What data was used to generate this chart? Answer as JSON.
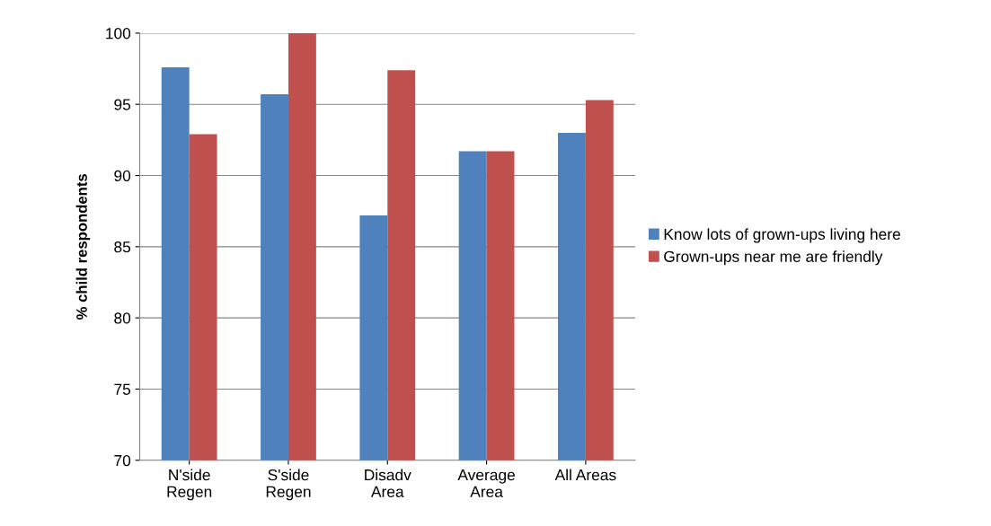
{
  "chart_data": {
    "type": "bar",
    "ylabel": "% child respondents",
    "categories": [
      "N'side\nRegen",
      "S'side\nRegen",
      "Disadv\nArea",
      "Average\nArea",
      "All Areas"
    ],
    "series": [
      {
        "name": "Know lots of grown-ups living here",
        "color": "#4f81bd",
        "values": [
          97.6,
          95.7,
          87.2,
          91.7,
          93.0
        ]
      },
      {
        "name": "Grown-ups near me are friendly",
        "color": "#c0504d",
        "values": [
          92.9,
          100,
          97.4,
          91.7,
          95.3
        ]
      }
    ],
    "ylim": [
      70,
      100
    ],
    "yticks": [
      70,
      75,
      80,
      85,
      90,
      95,
      100
    ],
    "grid": "y",
    "legend": "right"
  }
}
